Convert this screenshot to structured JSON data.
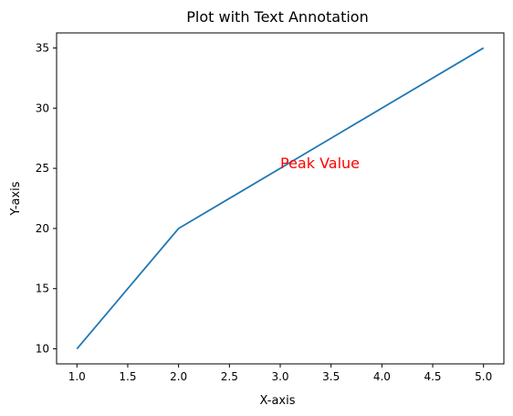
{
  "chart_data": {
    "type": "line",
    "title": "Plot with Text Annotation",
    "xlabel": "X-axis",
    "ylabel": "Y-axis",
    "x": [
      1,
      2,
      3,
      4,
      5
    ],
    "series": [
      {
        "values": [
          10,
          20,
          25,
          30,
          35
        ],
        "color": "#1f77b4"
      }
    ],
    "xlim": [
      0.8,
      5.2
    ],
    "ylim": [
      8.75,
      36.25
    ],
    "xticks": [
      "1.0",
      "1.5",
      "2.0",
      "2.5",
      "3.0",
      "3.5",
      "4.0",
      "4.5",
      "5.0"
    ],
    "yticks": [
      "10",
      "15",
      "20",
      "25",
      "30",
      "35"
    ],
    "grid": false,
    "annotation": {
      "text": "Peak Value",
      "x": 3,
      "y": 25,
      "color": "#ff0000"
    }
  }
}
